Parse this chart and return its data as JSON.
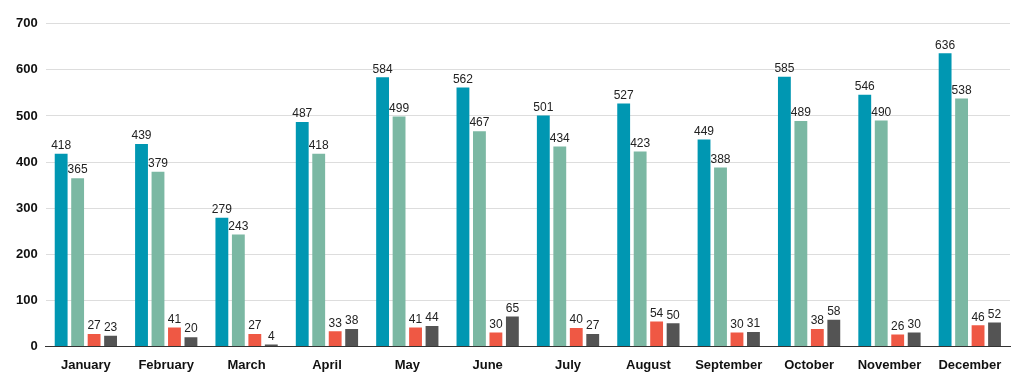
{
  "chart_data": {
    "type": "bar",
    "categories": [
      "January",
      "February",
      "March",
      "April",
      "May",
      "June",
      "July",
      "August",
      "September",
      "October",
      "November",
      "December"
    ],
    "series": [
      {
        "color": "#0097b2",
        "values": [
          418,
          439,
          279,
          487,
          584,
          562,
          501,
          527,
          449,
          585,
          546,
          636
        ]
      },
      {
        "color": "#7bb8a3",
        "values": [
          365,
          379,
          243,
          418,
          499,
          467,
          434,
          423,
          388,
          489,
          490,
          538
        ]
      },
      {
        "color": "#ef5844",
        "values": [
          27,
          41,
          27,
          33,
          41,
          30,
          40,
          54,
          30,
          38,
          26,
          46
        ]
      },
      {
        "color": "#545454",
        "values": [
          23,
          20,
          4,
          38,
          44,
          65,
          27,
          50,
          31,
          58,
          30,
          52
        ]
      }
    ],
    "ylim": [
      0,
      700
    ],
    "yticks": [
      0,
      100,
      200,
      300,
      400,
      500,
      600,
      700
    ],
    "grid": "y",
    "data_labels": true,
    "legend": false
  }
}
